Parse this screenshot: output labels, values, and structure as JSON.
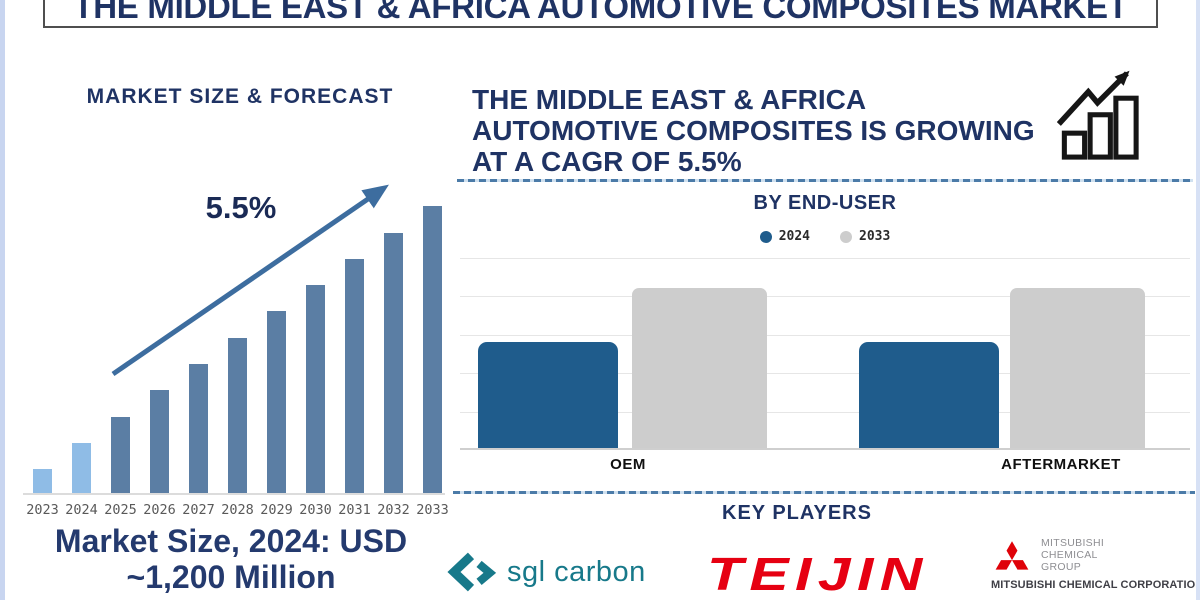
{
  "banner": {
    "title": "THE MIDDLE EAST & AFRICA AUTOMOTIVE COMPOSITES MARKET"
  },
  "growth_statement": {
    "lines": [
      "THE MIDDLE EAST & AFRICA",
      "AUTOMOTIVE COMPOSITES IS GROWING",
      "AT A CAGR OF 5.5%"
    ],
    "cagr": "5.5%"
  },
  "market_size_caption": {
    "line1": "Market Size, 2024: USD",
    "line2": "~1,200 Million"
  },
  "key_players": {
    "heading": "KEY PLAYERS",
    "players": [
      {
        "name": "sgl carbon",
        "brand_color": "#17798A"
      },
      {
        "name": "TEIJIN",
        "brand_color": "#E60012"
      },
      {
        "name": "Mitsubishi Chemical Group",
        "group_lines": [
          "MITSUBISHI",
          "CHEMICAL",
          "GROUP"
        ],
        "corporation": "MITSUBISHI CHEMICAL CORPORATION",
        "brand_color": "#DF0209"
      }
    ]
  },
  "chart_data": [
    {
      "type": "bar",
      "title": "MARKET SIZE & FORECAST",
      "annotation": "5.5%",
      "categories": [
        "2023",
        "2024",
        "2025",
        "2026",
        "2027",
        "2028",
        "2029",
        "2030",
        "2031",
        "2032",
        "2033"
      ],
      "values": [
        25,
        51,
        77,
        104,
        130,
        156,
        183,
        209,
        235,
        261,
        288
      ],
      "values_note": "relative bar heights (px); no value axis shown in figure",
      "historic_categories": [
        "2023",
        "2024"
      ],
      "colors": {
        "historic": "#8FBCE6",
        "forecast": "#5B7EA4",
        "arrow": "#3D6D9F"
      },
      "xlabel": "",
      "ylabel": "",
      "grid": false,
      "legend": "none"
    },
    {
      "type": "bar",
      "title": "BY END-USER",
      "categories": [
        "OEM",
        "AFTERMARKET"
      ],
      "series": [
        {
          "name": "2024",
          "values": [
            66,
            66
          ],
          "color": "#1F5C8C"
        },
        {
          "name": "2033",
          "values": [
            100,
            100
          ],
          "color": "#CDCDCD"
        }
      ],
      "values_note": "relative heights as % of 2033 bar; no value axis shown",
      "ylim": [
        0,
        100
      ],
      "grid": true,
      "legend_position": "top"
    }
  ]
}
